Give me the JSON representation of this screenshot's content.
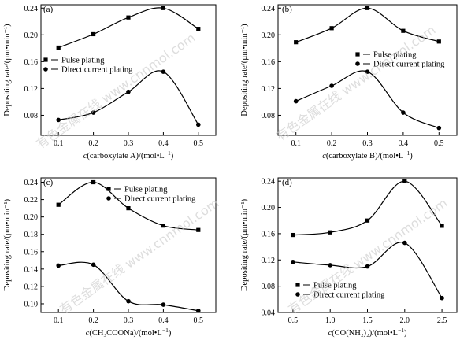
{
  "figure": {
    "watermark": "有色金属在线 www.cnnmol.com"
  },
  "colors": {
    "ink": "#000000",
    "watermark": "#c8c8c8"
  },
  "chart_data": [
    {
      "type": "line",
      "panel_label": "(a)",
      "xlabel_main": "c",
      "xlabel_rest": "(carboxylate A)/(mol•L",
      "xlabel_sup": "−1",
      "xlabel_close": ")",
      "ylabel": "Depositing rate/(µm•min⁻¹)",
      "x": [
        0.1,
        0.2,
        0.3,
        0.4,
        0.5
      ],
      "xticks": [
        "0.1",
        "0.2",
        "0.3",
        "0.4",
        "0.5"
      ],
      "xlim": [
        0.05,
        0.55
      ],
      "yticks": [
        "0.08",
        "0.12",
        "0.16",
        "0.20",
        "0.24"
      ],
      "ylim": [
        0.05,
        0.245
      ],
      "legend_position": "left",
      "series": [
        {
          "name": "Pulse plating",
          "marker": "square",
          "values": [
            0.181,
            0.201,
            0.226,
            0.24,
            0.209
          ]
        },
        {
          "name": "Direct current plating",
          "marker": "circle",
          "values": [
            0.073,
            0.084,
            0.115,
            0.145,
            0.066
          ]
        }
      ]
    },
    {
      "type": "line",
      "panel_label": "(b)",
      "xlabel_main": "c",
      "xlabel_rest": "(carboxylate B)/(mol•L",
      "xlabel_sup": "−1",
      "xlabel_close": ")",
      "ylabel": "Depositing rate/(µm•min⁻¹)",
      "x": [
        0.1,
        0.2,
        0.3,
        0.4,
        0.5
      ],
      "xticks": [
        "0.1",
        "0.2",
        "0.3",
        "0.4",
        "0.5"
      ],
      "xlim": [
        0.05,
        0.55
      ],
      "yticks": [
        "0.08",
        "0.12",
        "0.16",
        "0.20",
        "0.24"
      ],
      "ylim": [
        0.05,
        0.245
      ],
      "legend_position": "right",
      "series": [
        {
          "name": "Pulse plating",
          "marker": "square",
          "values": [
            0.189,
            0.21,
            0.24,
            0.206,
            0.19
          ]
        },
        {
          "name": "Direct current plating",
          "marker": "circle",
          "values": [
            0.101,
            0.124,
            0.145,
            0.084,
            0.061
          ]
        }
      ]
    },
    {
      "type": "line",
      "panel_label": "(c)",
      "xlabel_main": "c",
      "xlabel_rest": "(CH₃COONa)/(mol•L",
      "xlabel_sup": "−1",
      "xlabel_close": ")",
      "ylabel": "Depositing rate/(µm•min⁻¹)",
      "x": [
        0.1,
        0.2,
        0.3,
        0.4,
        0.5
      ],
      "xticks": [
        "0.1",
        "0.2",
        "0.3",
        "0.4",
        "0.5"
      ],
      "xlim": [
        0.05,
        0.55
      ],
      "yticks": [
        "0.10",
        "0.12",
        "0.14",
        "0.16",
        "0.18",
        "0.20",
        "0.22",
        "0.24"
      ],
      "ylim": [
        0.09,
        0.245
      ],
      "legend_position": "top-right",
      "series": [
        {
          "name": "Pulse plating",
          "marker": "square",
          "values": [
            0.214,
            0.24,
            0.21,
            0.19,
            0.185
          ]
        },
        {
          "name": "Direct current plating",
          "marker": "circle",
          "values": [
            0.144,
            0.145,
            0.103,
            0.099,
            0.092
          ]
        }
      ]
    },
    {
      "type": "line",
      "panel_label": "(d)",
      "xlabel_main": "c",
      "xlabel_rest": "(CO(NH₂)₂)/(mol•L",
      "xlabel_sup": "−1",
      "xlabel_close": ")",
      "ylabel": "Depositing rate/(µm•min⁻¹)",
      "x": [
        0.5,
        1.0,
        1.5,
        2.0,
        2.5
      ],
      "xticks": [
        "0.5",
        "1.0",
        "1.5",
        "2.0",
        "2.5"
      ],
      "xlim": [
        0.3,
        2.7
      ],
      "yticks": [
        "0.04",
        "0.08",
        "0.12",
        "0.16",
        "0.20",
        "0.24"
      ],
      "ylim": [
        0.04,
        0.245
      ],
      "legend_position": "bottom-left",
      "series": [
        {
          "name": "Pulse plating",
          "marker": "square",
          "values": [
            0.158,
            0.162,
            0.18,
            0.24,
            0.172
          ]
        },
        {
          "name": "Direct current plating",
          "marker": "circle",
          "values": [
            0.117,
            0.112,
            0.11,
            0.146,
            0.062
          ]
        }
      ]
    }
  ]
}
